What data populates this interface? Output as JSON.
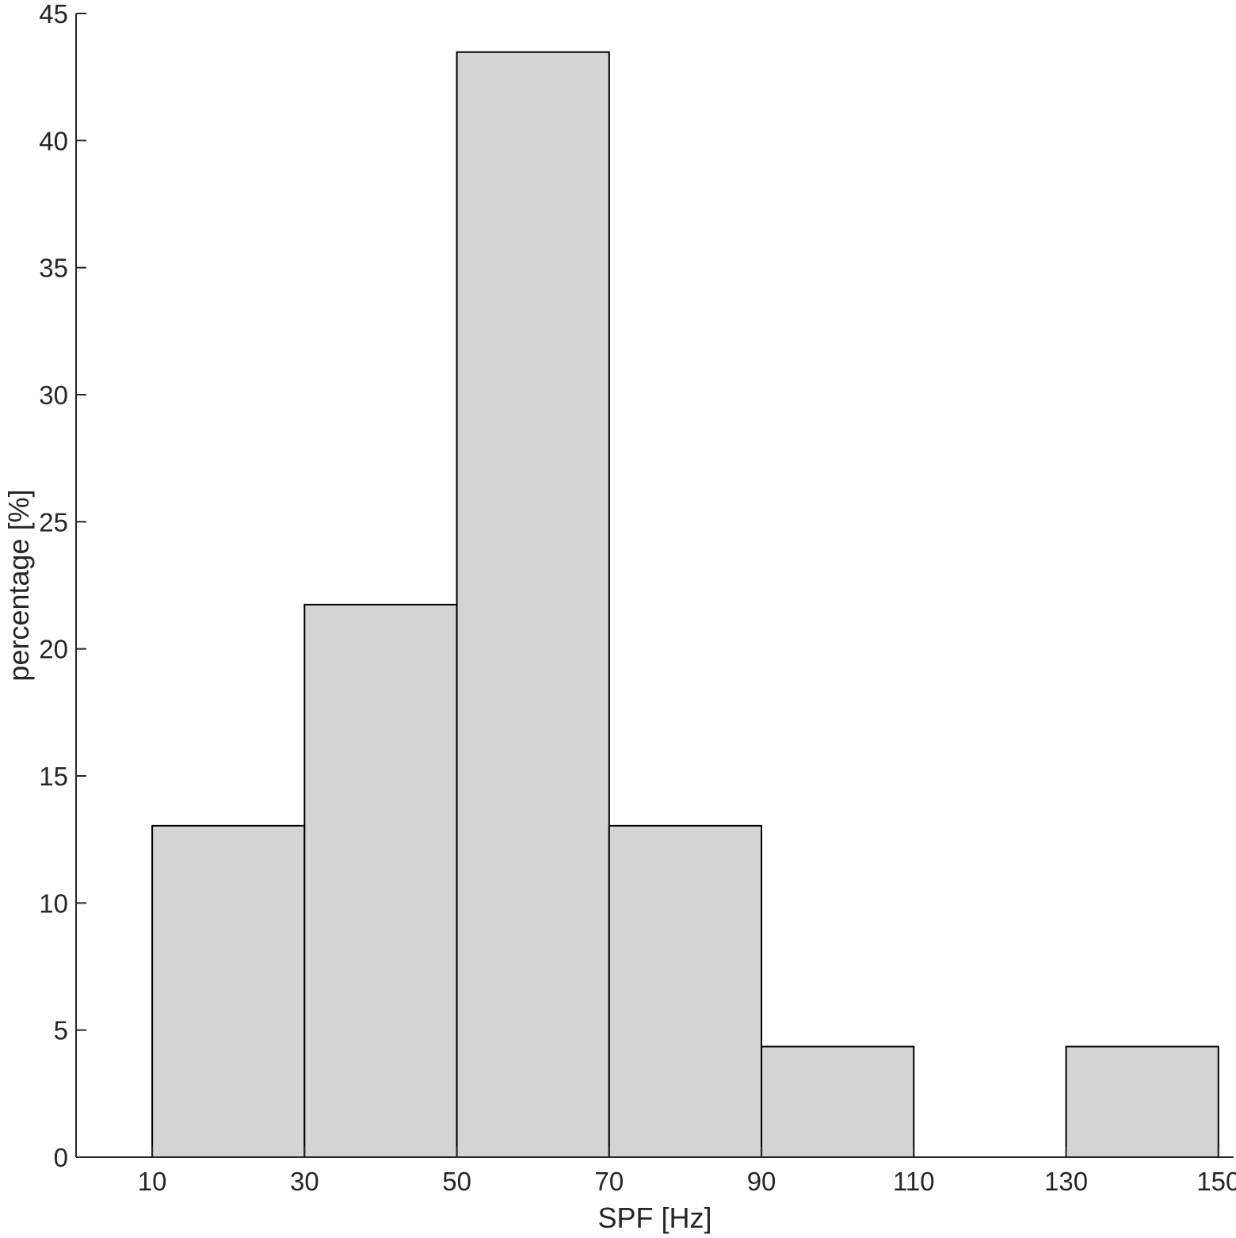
{
  "chart_data": {
    "type": "bar",
    "subtype": "histogram",
    "xlabel": "SPF [Hz]",
    "ylabel": "percentage [%]",
    "xlim": [
      0,
      152
    ],
    "ylim": [
      0,
      45
    ],
    "xticks": [
      10,
      30,
      50,
      70,
      90,
      110,
      130,
      150
    ],
    "yticks": [
      0,
      5,
      10,
      15,
      20,
      25,
      30,
      35,
      40,
      45
    ],
    "bin_edges": [
      10,
      30,
      50,
      70,
      90,
      110,
      130,
      150
    ],
    "bins": [
      {
        "x0": 10,
        "x1": 30,
        "value": 13.04
      },
      {
        "x0": 30,
        "x1": 50,
        "value": 21.74
      },
      {
        "x0": 50,
        "x1": 70,
        "value": 43.48
      },
      {
        "x0": 70,
        "x1": 90,
        "value": 13.04
      },
      {
        "x0": 90,
        "x1": 110,
        "value": 4.35
      },
      {
        "x0": 110,
        "x1": 130,
        "value": 0
      },
      {
        "x0": 130,
        "x1": 150,
        "value": 4.35
      }
    ],
    "bar_color": "#d4d4d4",
    "edge_color": "#000000",
    "grid": false
  }
}
